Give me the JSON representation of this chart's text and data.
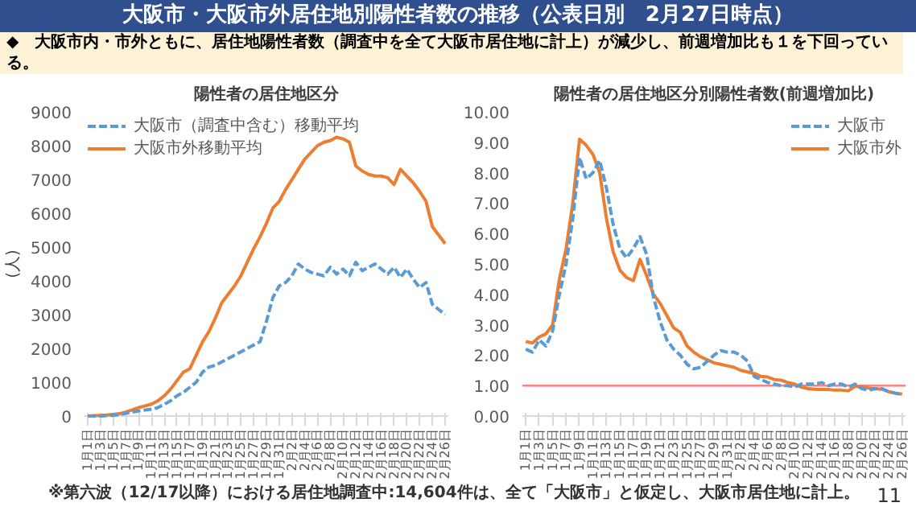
{
  "chart_data": [
    {
      "type": "other",
      "title": "大阪市・大阪市外居住地別陽性者数の推移（公表日別　2月27日時点）",
      "subtitle": "◆　大阪市内・市外ともに、居住地陽性者数（調査中を全て大阪市居住地に計上）が減少し、前週増加比も１を下回っている。",
      "annotations": [
        "※第六波（12/17以降）における居住地調査中:14,604件は、全て「大阪市」と仮定し、大阪市居住地に計上。",
        "11"
      ]
    },
    {
      "type": "line",
      "title": "陽性者の居住地区分",
      "ylabel": "(人)",
      "legend": "top left",
      "grid": false,
      "categories": [
        "1月1日",
        null,
        "1月3日",
        null,
        "1月5日",
        null,
        "1月7日",
        null,
        "1月9日",
        null,
        "1月11日",
        null,
        "1月13日",
        null,
        "1月15日",
        null,
        "1月17日",
        null,
        "1月19日",
        null,
        "1月21日",
        null,
        "1月23日",
        null,
        "1月25日",
        null,
        "1月27日",
        null,
        "1月29日",
        null,
        "1月31日",
        null,
        "2月2日",
        null,
        "2月4日",
        null,
        "2月6日",
        null,
        "2月8日",
        null,
        "2月10日",
        null,
        "2月12日",
        null,
        "2月14日",
        null,
        "2月16日",
        null,
        "2月18日",
        null,
        "2月20日",
        null,
        "2月22日",
        null,
        "2月24日",
        null,
        "2月26日"
      ],
      "ylim": [
        0,
        9000
      ],
      "yticks": [
        0,
        1000,
        2000,
        3000,
        4000,
        5000,
        6000,
        7000,
        8000,
        9000
      ],
      "series": [
        {
          "name": "大阪市（調査中含む）移動平均",
          "color": "#5b9bd5",
          "line_style": "dashed",
          "values": [
            0,
            0,
            0,
            10,
            20,
            40,
            80,
            120,
            150,
            180,
            200,
            250,
            350,
            450,
            600,
            700,
            850,
            1000,
            1300,
            1450,
            1500,
            1600,
            1700,
            1800,
            1900,
            2000,
            2100,
            2200,
            2800,
            3500,
            3850,
            3950,
            4150,
            4500,
            4350,
            4250,
            4200,
            4150,
            4400,
            4200,
            4350,
            4150,
            4550,
            4300,
            4400,
            4500,
            4350,
            4200,
            4400,
            4100,
            4350,
            4050,
            3800,
            3950,
            3300,
            3150,
            3000
          ]
        },
        {
          "name": "大阪市外移動平均",
          "color": "#ed7d31",
          "line_style": "solid",
          "values": [
            0,
            10,
            20,
            30,
            50,
            70,
            120,
            180,
            250,
            300,
            350,
            450,
            600,
            800,
            1050,
            1300,
            1400,
            1800,
            2200,
            2500,
            2900,
            3350,
            3600,
            3850,
            4150,
            4550,
            4950,
            5300,
            5700,
            6150,
            6350,
            6700,
            7000,
            7300,
            7600,
            7800,
            8000,
            8100,
            8150,
            8250,
            8200,
            8100,
            7400,
            7250,
            7150,
            7100,
            7100,
            7050,
            6850,
            7300,
            7100,
            6900,
            6650,
            6350,
            5600,
            5350,
            5100
          ]
        }
      ]
    },
    {
      "type": "line",
      "title": "陽性者の居住地区分別陽性者数(前週増加比)",
      "legend": "top right",
      "grid": false,
      "categories": [
        "1月1日",
        null,
        "1月3日",
        null,
        "1月5日",
        null,
        "1月7日",
        null,
        "1月9日",
        null,
        "1月11日",
        null,
        "1月13日",
        null,
        "1月15日",
        null,
        "1月17日",
        null,
        "1月19日",
        null,
        "1月21日",
        null,
        "1月23日",
        null,
        "1月25日",
        null,
        "1月27日",
        null,
        "1月29日",
        null,
        "1月31日",
        null,
        "2月2日",
        null,
        "2月4日",
        null,
        "2月6日",
        null,
        "2月8日",
        null,
        "2月10日",
        null,
        "2月12日",
        null,
        "2月14日",
        null,
        "2月16日",
        null,
        "2月18日",
        null,
        "2月20日",
        null,
        "2月22日",
        null,
        "2月24日",
        null,
        "2月26日"
      ],
      "ylim": [
        0,
        10
      ],
      "yticks": [
        {
          "value": 0,
          "label": "0.00"
        },
        {
          "value": 1,
          "label": "1.00"
        },
        {
          "value": 2,
          "label": "2.00"
        },
        {
          "value": 3,
          "label": "3.00"
        },
        {
          "value": 4,
          "label": "4.00"
        },
        {
          "value": 5,
          "label": "5.00"
        },
        {
          "value": 6,
          "label": "6.00"
        },
        {
          "value": 7,
          "label": "7.00"
        },
        {
          "value": 8,
          "label": "8.00"
        },
        {
          "value": 9,
          "label": "9.00"
        },
        {
          "value": 10,
          "label": "10.00"
        }
      ],
      "ref_lines": [
        {
          "axis": "y",
          "value": 1,
          "color": "#ff8080"
        }
      ],
      "series": [
        {
          "name": "大阪市",
          "color": "#5b9bd5",
          "line_style": "dashed",
          "values": [
            2.2,
            2.1,
            2.5,
            2.3,
            2.8,
            4.0,
            5.0,
            6.5,
            8.5,
            7.8,
            8.0,
            8.4,
            7.5,
            6.3,
            5.5,
            5.2,
            5.5,
            5.9,
            5.3,
            3.9,
            3.1,
            2.5,
            2.2,
            2.0,
            1.7,
            1.55,
            1.6,
            1.8,
            2.0,
            2.15,
            2.1,
            2.1,
            2.0,
            1.8,
            1.3,
            1.2,
            1.1,
            1.05,
            1.0,
            1.0,
            0.95,
            1.05,
            1.05,
            1.05,
            1.1,
            1.0,
            1.05,
            1.05,
            0.95,
            1.05,
            0.9,
            0.85,
            0.9,
            0.9,
            0.8,
            0.75,
            0.7
          ]
        },
        {
          "name": "大阪市外",
          "color": "#ed7d31",
          "line_style": "solid",
          "values": [
            2.45,
            2.4,
            2.6,
            2.7,
            3.0,
            4.5,
            5.5,
            7.0,
            9.1,
            8.9,
            8.6,
            8.0,
            6.5,
            5.4,
            4.8,
            4.55,
            4.45,
            5.15,
            4.6,
            4.0,
            3.7,
            3.3,
            2.9,
            2.75,
            2.3,
            2.1,
            1.95,
            1.85,
            1.75,
            1.7,
            1.65,
            1.6,
            1.5,
            1.45,
            1.4,
            1.3,
            1.28,
            1.2,
            1.18,
            1.1,
            1.05,
            0.95,
            0.9,
            0.88,
            0.87,
            0.87,
            0.85,
            0.85,
            0.83,
            0.98,
            0.95,
            0.92,
            0.9,
            0.88,
            0.8,
            0.75,
            0.72
          ]
        }
      ]
    }
  ]
}
